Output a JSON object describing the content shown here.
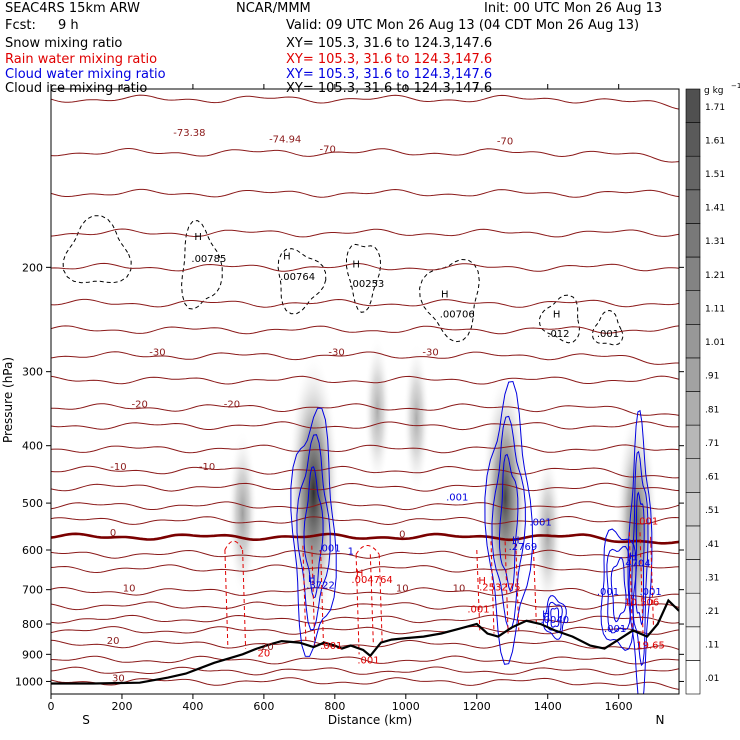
{
  "header": {
    "model": "SEAC4RS 15km ARW",
    "org": "NCAR/MMM",
    "init": "Init: 00 UTC Mon 26 Aug 13",
    "fcst_label": "Fcst:",
    "fcst_value": "9 h",
    "valid": "Valid: 09 UTC Mon 26 Aug 13 (04 CDT Mon 26 Aug 13)"
  },
  "fields": [
    {
      "label": "Snow mixing ratio",
      "xy": "XY= 105.3, 31.6 to 124.3,147.6",
      "color": "#000000"
    },
    {
      "label": "Rain water mixing ratio",
      "xy": "XY= 105.3, 31.6 to 124.3,147.6",
      "color": "#e00000"
    },
    {
      "label": "Cloud water mixing ratio",
      "xy": "XY= 105.3, 31.6 to 124.3,147.6",
      "color": "#0000e0"
    },
    {
      "label": "Cloud ice mixing ratio",
      "xy": "XY= 105.3, 31.6 to 124.3,147.6",
      "color": "#000000"
    }
  ],
  "colors": {
    "temperature": "#8b1a1a",
    "freezing": "#7a0000",
    "rain": "#e00000",
    "cloudwater": "#0000e0",
    "terrain": "#000000"
  },
  "chart_data": {
    "type": "heatmap",
    "xlabel": "Distance (km)",
    "ylabel": "Pressure (hPa)",
    "xlim": [
      0,
      1770
    ],
    "ylim": [
      1050,
      100
    ],
    "y_scale": "log",
    "x_ticks": [
      0,
      200,
      400,
      600,
      800,
      1000,
      1200,
      1400,
      1600
    ],
    "y_ticks": [
      200,
      300,
      400,
      500,
      600,
      700,
      800,
      900,
      1000
    ],
    "x_end_labels": {
      "left": "S",
      "right": "N"
    },
    "colorbar": {
      "unit": "g kg",
      "unit_exp": "−1",
      "levels": [
        ".01",
        ".11",
        ".21",
        ".31",
        ".41",
        ".51",
        ".61",
        ".71",
        ".81",
        ".91",
        "1.01",
        "1.11",
        "1.21",
        "1.31",
        "1.41",
        "1.51",
        "1.61",
        "1.71"
      ]
    },
    "temperature_contours": [
      {
        "label": "-70",
        "p": 104
      },
      {
        "label": "-70",
        "p": 128
      },
      {
        "label": "-30",
        "p": 282
      },
      {
        "label": "-20",
        "p": 345
      },
      {
        "label": "-10",
        "p": 440
      },
      {
        "label": "0",
        "p": 570
      },
      {
        "label": "10",
        "p": 705
      },
      {
        "label": "20",
        "p": 865
      },
      {
        "label": "30",
        "p": 1000
      }
    ],
    "contour_labels": [
      {
        "text": "-73.38",
        "x": 390,
        "p": 120,
        "field": "temperature"
      },
      {
        "text": "-74.94",
        "x": 660,
        "p": 123,
        "field": "temperature"
      },
      {
        "text": "-70",
        "x": 780,
        "p": 128,
        "field": "temperature"
      },
      {
        "text": "-70",
        "x": 1280,
        "p": 124,
        "field": "temperature"
      },
      {
        "text": "-30",
        "x": 300,
        "p": 282,
        "field": "temperature"
      },
      {
        "text": "-30",
        "x": 805,
        "p": 282,
        "field": "temperature"
      },
      {
        "text": "-30",
        "x": 1070,
        "p": 282,
        "field": "temperature"
      },
      {
        "text": "-20",
        "x": 250,
        "p": 345,
        "field": "temperature"
      },
      {
        "text": "-20",
        "x": 510,
        "p": 345,
        "field": "temperature"
      },
      {
        "text": "-10",
        "x": 190,
        "p": 440,
        "field": "temperature"
      },
      {
        "text": "-10",
        "x": 440,
        "p": 440,
        "field": "temperature"
      },
      {
        "text": "0",
        "x": 175,
        "p": 568,
        "field": "temperature"
      },
      {
        "text": "0",
        "x": 990,
        "p": 572,
        "field": "temperature"
      },
      {
        "text": "10",
        "x": 220,
        "p": 705,
        "field": "temperature"
      },
      {
        "text": "10",
        "x": 990,
        "p": 705,
        "field": "temperature"
      },
      {
        "text": "10",
        "x": 1150,
        "p": 705,
        "field": "temperature"
      },
      {
        "text": "20",
        "x": 175,
        "p": 865,
        "field": "temperature"
      },
      {
        "text": "20",
        "x": 610,
        "p": 885,
        "field": "temperature"
      },
      {
        "text": "30",
        "x": 190,
        "p": 1000,
        "field": "temperature"
      },
      {
        "text": "H",
        "x": 415,
        "p": 180,
        "field": "cloudice"
      },
      {
        "text": ".00785",
        "x": 445,
        "p": 196,
        "field": "cloudice"
      },
      {
        "text": "H",
        "x": 665,
        "p": 194,
        "field": "cloudice"
      },
      {
        "text": ".00764",
        "x": 695,
        "p": 210,
        "field": "cloudice"
      },
      {
        "text": "H",
        "x": 860,
        "p": 200,
        "field": "cloudice"
      },
      {
        "text": ".00253",
        "x": 890,
        "p": 216,
        "field": "cloudice"
      },
      {
        "text": "H",
        "x": 1110,
        "p": 225,
        "field": "cloudice"
      },
      {
        "text": ".00706",
        "x": 1145,
        "p": 243,
        "field": "cloudice"
      },
      {
        "text": "H",
        "x": 1425,
        "p": 243,
        "field": "cloudice"
      },
      {
        "text": ".012",
        "x": 1430,
        "p": 262,
        "field": "cloudice"
      },
      {
        "text": ".001",
        "x": 1570,
        "p": 262,
        "field": "cloudice"
      },
      {
        "text": ".001",
        "x": 1145,
        "p": 495,
        "field": "cloudwater"
      },
      {
        "text": ".001",
        "x": 1380,
        "p": 545,
        "field": "cloudwater"
      },
      {
        "text": ".001",
        "x": 785,
        "p": 604,
        "field": "cloudwater"
      },
      {
        "text": "1",
        "x": 845,
        "p": 610,
        "field": "cloudwater"
      },
      {
        "text": "H",
        "x": 1310,
        "p": 585,
        "field": "cloudwater"
      },
      {
        "text": ".2769",
        "x": 1330,
        "p": 600,
        "field": "cloudwater"
      },
      {
        "text": "H",
        "x": 1640,
        "p": 623,
        "field": "cloudwater"
      },
      {
        "text": ".4704",
        "x": 1650,
        "p": 640,
        "field": "cloudwater"
      },
      {
        "text": "H",
        "x": 735,
        "p": 680,
        "field": "cloudwater"
      },
      {
        "text": ".3722",
        "x": 760,
        "p": 697,
        "field": "cloudwater"
      },
      {
        "text": ".001",
        "x": 1570,
        "p": 715,
        "field": "cloudwater"
      },
      {
        "text": ".001",
        "x": 1690,
        "p": 715,
        "field": "cloudwater"
      },
      {
        "text": "H",
        "x": 1395,
        "p": 780,
        "field": "cloudwater"
      },
      {
        "text": ".0040",
        "x": 1420,
        "p": 797,
        "field": "cloudwater"
      },
      {
        "text": ".001",
        "x": 1590,
        "p": 825,
        "field": "cloudwater"
      },
      {
        "text": ".001",
        "x": 1680,
        "p": 543,
        "field": "rain"
      },
      {
        "text": "H",
        "x": 870,
        "p": 665,
        "field": "rain"
      },
      {
        "text": ".004764",
        "x": 905,
        "p": 682,
        "field": "rain"
      },
      {
        "text": "H",
        "x": 1215,
        "p": 685,
        "field": "rain"
      },
      {
        "text": ".253275",
        "x": 1265,
        "p": 702,
        "field": "rain"
      },
      {
        "text": ".001",
        "x": 1205,
        "p": 765,
        "field": "rain"
      },
      {
        "text": "10.506",
        "x": 1665,
        "p": 745,
        "field": "rain"
      },
      {
        "text": ".001",
        "x": 790,
        "p": 882,
        "field": "rain"
      },
      {
        "text": ".001",
        "x": 895,
        "p": 932,
        "field": "rain"
      },
      {
        "text": "19.65",
        "x": 1690,
        "p": 880,
        "field": "rain"
      },
      {
        "text": "20",
        "x": 600,
        "p": 908,
        "field": "rain"
      }
    ],
    "snow_cores": [
      {
        "x": 740,
        "p": 480,
        "intensity": 1.0
      },
      {
        "x": 1280,
        "p": 490,
        "intensity": 0.85
      },
      {
        "x": 1650,
        "p": 540,
        "intensity": 0.7
      },
      {
        "x": 540,
        "p": 520,
        "intensity": 0.3
      },
      {
        "x": 920,
        "p": 350,
        "intensity": 0.2
      },
      {
        "x": 1030,
        "p": 360,
        "intensity": 0.2
      },
      {
        "x": 1400,
        "p": 560,
        "intensity": 0.25
      }
    ]
  }
}
